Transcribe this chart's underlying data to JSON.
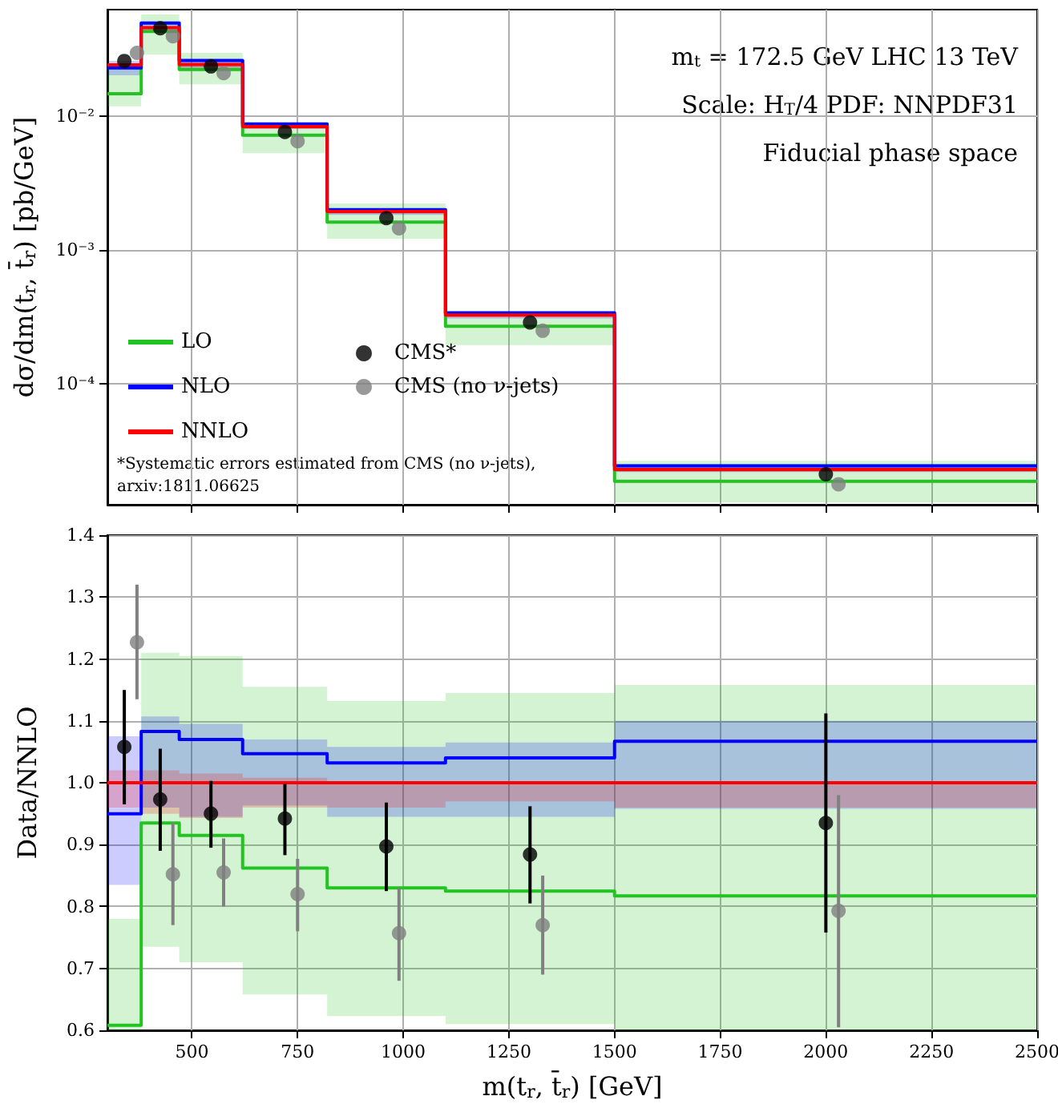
{
  "chart_data": [
    {
      "type": "step",
      "ylabel": "dσ/dm(t$_{r}$, t̄$_{r}$) [pb/GeV]",
      "annotations": [
        "m$_{t}$ = 172.5 GeV LHC 13 TeV",
        "Scale: H$_{T}$/4 PDF: NNPDF31",
        "Fiducial phase space",
        "*Systematic errors estimated from CMS (no ν-jets),\narxiv:1811.06625"
      ],
      "xlim": [
        300,
        2500
      ],
      "xticks": [
        500,
        750,
        1000,
        1250,
        1500,
        1750,
        2000,
        2250,
        2500
      ],
      "ylim": [
        1.25e-05,
        0.063
      ],
      "yticks": [
        {
          "value": 0.0001,
          "label": "10⁻⁴"
        },
        {
          "value": 0.001,
          "label": "10⁻³"
        },
        {
          "value": 0.01,
          "label": "10⁻²"
        }
      ],
      "log": "y",
      "grid": true,
      "legend": "bottom left",
      "tick_labels": "y",
      "marker": "circle",
      "line_style": "solid",
      "series": [
        {
          "name": "LO",
          "color": "#22c322",
          "marker": "none",
          "x": [
            300,
            380,
            470,
            620,
            820,
            1100,
            1500,
            2500
          ],
          "values": [
            0.0148,
            0.0432,
            0.0225,
            0.00725,
            0.00162,
            0.00027,
            1.87e-05,
            1.87e-05
          ],
          "lower": [
            0.0119,
            0.029,
            0.0174,
            0.00531,
            0.00122,
            0.000195,
            1.3e-05,
            1.3e-05
          ],
          "upper": [
            0.0251,
            0.058,
            0.0299,
            0.0089,
            0.00224,
            0.000336,
            2.66e-05,
            2.66e-05
          ]
        },
        {
          "name": "NLO",
          "color": "#0000ff",
          "marker": "none",
          "x": [
            300,
            380,
            470,
            620,
            820,
            1100,
            1500,
            2500
          ],
          "values": [
            0.0231,
            0.05,
            0.0262,
            0.0088,
            0.00201,
            0.00034,
            2.44e-05,
            2.44e-05
          ],
          "lower": [
            0.0203,
            0.0444,
            0.0232,
            0.0081,
            0.00184,
            0.000309,
            2.19e-05,
            2.19e-05
          ],
          "upper": [
            0.0261,
            0.0511,
            0.0268,
            0.009,
            0.00206,
            0.000348,
            2.52e-05,
            2.52e-05
          ]
        },
        {
          "name": "NNLO",
          "color": "#ff0000",
          "marker": "none",
          "x": [
            300,
            380,
            470,
            620,
            820,
            1100,
            1500,
            2500
          ],
          "values": [
            0.0243,
            0.0462,
            0.0245,
            0.00841,
            0.00195,
            0.000327,
            2.29e-05,
            2.29e-05
          ],
          "lower": [
            0.0233,
            0.0439,
            0.0231,
            0.00807,
            0.00187,
            0.000317,
            2.2e-05,
            2.2e-05
          ],
          "upper": [
            0.0248,
            0.0471,
            0.0249,
            0.00848,
            0.00195,
            0.000327,
            2.29e-05,
            2.29e-05
          ]
        },
        {
          "type": "scatter",
          "name": "CMS*",
          "color": "#000000",
          "x": [
            340,
            425,
            545,
            720,
            960,
            1300,
            2000
          ],
          "values": [
            0.026,
            0.0457,
            0.0237,
            0.00767,
            0.00174,
            0.000288,
            2.11e-05
          ]
        },
        {
          "type": "scatter",
          "name": "CMS (no ν-jets)",
          "color": "#808080",
          "x": [
            370,
            455,
            575,
            750,
            990,
            1330,
            2030
          ],
          "values": [
            0.0299,
            0.0398,
            0.0211,
            0.00653,
            0.00146,
            0.00025,
            1.78e-05
          ]
        }
      ]
    },
    {
      "type": "step",
      "xlabel": "m(t$_{r}$, t̄$_{r}$) [GeV]",
      "ylabel": "Data/NNLO",
      "xlim": [
        300,
        2500
      ],
      "xticks": [
        500,
        750,
        1000,
        1250,
        1500,
        1750,
        2000,
        2250,
        2500
      ],
      "ylim": [
        0.6,
        1.4
      ],
      "yticks": [
        0.6,
        0.7,
        0.8,
        0.9,
        {
          "value": 1,
          "label": "1.0"
        },
        1.1,
        1.2,
        1.3,
        1.4
      ],
      "grid": true,
      "marker": "circle",
      "line_style": "solid",
      "series": [
        {
          "color": "#22c322",
          "marker": "none",
          "x": [
            300,
            380,
            470,
            620,
            820,
            1100,
            1500,
            2500
          ],
          "values": [
            0.608,
            0.935,
            0.915,
            0.862,
            0.83,
            0.825,
            0.817,
            0.817
          ],
          "lower": [
            0.6,
            0.735,
            0.71,
            0.658,
            0.623,
            0.61,
            0.6,
            0.6
          ],
          "upper": [
            0.78,
            1.21,
            1.205,
            1.155,
            1.132,
            1.145,
            1.158,
            1.158
          ]
        },
        {
          "color": "#0000ff",
          "marker": "none",
          "x": [
            300,
            380,
            470,
            620,
            820,
            1100,
            1500,
            2500
          ],
          "values": [
            0.95,
            1.083,
            1.07,
            1.047,
            1.032,
            1.04,
            1.067,
            1.067
          ],
          "lower": [
            0.835,
            0.96,
            0.945,
            0.963,
            0.945,
            0.945,
            0.958,
            0.958
          ],
          "upper": [
            1.075,
            1.107,
            1.095,
            1.07,
            1.058,
            1.065,
            1.1,
            1.1
          ]
        },
        {
          "color": "#ff0000",
          "marker": "none",
          "x": [
            300,
            380,
            470,
            620,
            820,
            1100,
            1500,
            2500
          ],
          "values": [
            1,
            1,
            1,
            1,
            1,
            1,
            1,
            1
          ],
          "lower": [
            0.96,
            0.95,
            0.943,
            0.96,
            0.96,
            0.97,
            0.96,
            0.96
          ],
          "upper": [
            1.02,
            1.02,
            1.015,
            1.008,
            1,
            1,
            1,
            1
          ]
        },
        {
          "type": "scatter",
          "color": "#000000",
          "x": [
            340,
            425,
            545,
            720,
            960,
            1300,
            2000
          ],
          "values": [
            1.058,
            0.973,
            0.95,
            0.942,
            0.897,
            0.884,
            0.935
          ],
          "errors": [
            [
              0.965,
              1.15
            ],
            [
              0.89,
              1.055
            ],
            [
              0.895,
              1.003
            ],
            [
              0.883,
              0.998
            ],
            [
              0.825,
              0.968
            ],
            [
              0.805,
              0.962
            ],
            [
              0.758,
              1.112
            ]
          ]
        },
        {
          "type": "scatter",
          "color": "#808080",
          "x": [
            370,
            455,
            575,
            750,
            990,
            1330,
            2030
          ],
          "values": [
            1.227,
            0.852,
            0.855,
            0.82,
            0.757,
            0.77,
            0.793
          ],
          "errors": [
            [
              1.135,
              1.32
            ],
            [
              0.77,
              0.935
            ],
            [
              0.8,
              0.91
            ],
            [
              0.76,
              0.877
            ],
            [
              0.68,
              0.83
            ],
            [
              0.69,
              0.85
            ],
            [
              0.605,
              0.98
            ]
          ]
        }
      ]
    }
  ]
}
